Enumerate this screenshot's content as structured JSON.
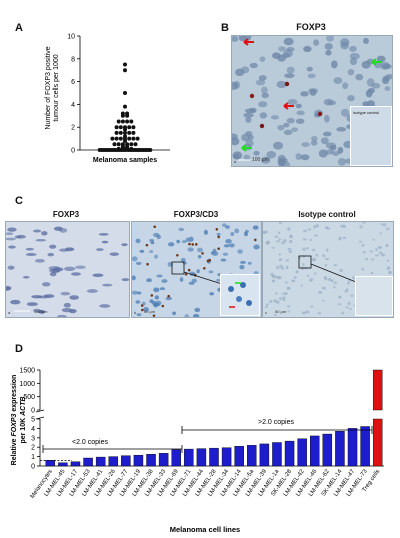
{
  "panels": {
    "A": {
      "letter": "A",
      "ylabel_line1": "Number of FOXP3 positive",
      "ylabel_line2": "tumour cells per 1000",
      "xlabel": "Melanoma samples",
      "y_ticks": [
        "0",
        "2",
        "4",
        "6",
        "8",
        "10"
      ]
    },
    "B": {
      "letter": "B",
      "title": "FOXP3",
      "inset_label": "Isotype control",
      "scale": "100 µm",
      "corner": "a"
    },
    "C": {
      "letter": "C",
      "titles": [
        "FOXP3",
        "FOXP3/CD3",
        "Isotype control"
      ],
      "scales": [
        "100 µm",
        "50 µm",
        "50 µm"
      ],
      "corners": [
        "a",
        "b",
        "c"
      ]
    },
    "D": {
      "letter": "D",
      "ylabel_line1": "Relative",
      "ylabel_italic1": "FOXP3",
      "ylabel_rest1": " expression",
      "ylabel_line2a": "per 10K ",
      "ylabel_italic2": "ACTB",
      "xlabel": "Melanoma cell lines",
      "upper_ticks": [
        "0",
        "500",
        "1000",
        "1500"
      ],
      "lower_ticks": [
        "0",
        "1",
        "2",
        "3",
        "4",
        "5"
      ],
      "bracket_low": "<2.0 copies",
      "bracket_high": ">2.0 copies"
    }
  },
  "chart_data": [
    {
      "type": "scatter",
      "panel": "A",
      "ylim": [
        0,
        10
      ],
      "x": "Melanoma samples",
      "values": [
        7.5,
        7.0,
        5.0,
        3.8,
        3.2,
        3.2,
        3.0,
        3.0,
        2.5,
        2.5,
        2.5,
        2.5,
        2.0,
        2.0,
        2.0,
        2.0,
        2.0,
        1.8,
        1.5,
        1.5,
        1.5,
        1.5,
        1.5,
        1.2,
        1.0,
        1.0,
        1.0,
        1.0,
        1.0,
        1.0,
        1.0,
        0.8,
        0.5,
        0.5,
        0.5,
        0.5,
        0.5,
        0.5,
        0.3,
        0.3,
        0.2,
        0.2,
        0.1,
        0.1,
        0.1,
        0.1,
        0.0,
        0.0,
        0.0,
        0.0,
        0.0,
        0.0,
        0.0,
        0.0,
        0.0,
        0.0,
        0.0,
        0.0,
        0.0,
        0.0,
        0.0,
        0.0,
        0.0,
        0.0,
        0.0,
        0.0,
        0.0,
        0.0,
        0.0,
        0.0
      ]
    },
    {
      "type": "bar",
      "panel": "D",
      "categories": [
        "Melanocytes",
        "LM-MEL-45",
        "LM-MEL-17",
        "LM-MEL-53",
        "LM-MEL-41",
        "LM-MEL-26",
        "LM-MEL-77",
        "LM-MEL-19",
        "LM-MEL-38",
        "LM-MEL-33",
        "LM-MEL-69",
        "LM-MEL-71",
        "LM-MEL-44",
        "LM-MEL-28",
        "LM-MEL-34",
        "LM-MEL-14",
        "LM-MEL-5a",
        "LM-MEL-39",
        "LM-MEL-1a",
        "SK-MEL-28",
        "LM-MEL-42",
        "LM-MEL-46",
        "LM-MEL-62",
        "SK-MEL-14",
        "LM-MEL-47",
        "LM-MEL-73",
        "Treg cells"
      ],
      "values": [
        0.6,
        0.35,
        0.45,
        0.85,
        0.95,
        1.0,
        1.1,
        1.15,
        1.25,
        1.35,
        1.75,
        1.8,
        1.85,
        1.9,
        1.95,
        2.1,
        2.2,
        2.35,
        2.5,
        2.65,
        2.9,
        3.2,
        3.4,
        3.7,
        4.0,
        4.2,
        1500
      ],
      "colors": [
        "#1d1dcc",
        "#1d1dcc",
        "#1d1dcc",
        "#1d1dcc",
        "#1d1dcc",
        "#1d1dcc",
        "#1d1dcc",
        "#1d1dcc",
        "#1d1dcc",
        "#1d1dcc",
        "#1d1dcc",
        "#1d1dcc",
        "#1d1dcc",
        "#1d1dcc",
        "#1d1dcc",
        "#1d1dcc",
        "#1d1dcc",
        "#1d1dcc",
        "#1d1dcc",
        "#1d1dcc",
        "#1d1dcc",
        "#1d1dcc",
        "#1d1dcc",
        "#1d1dcc",
        "#1d1dcc",
        "#1d1dcc",
        "#dd1111"
      ],
      "ylim_lower": [
        0,
        5
      ],
      "ylim_upper": [
        0,
        1500
      ],
      "reference_line": 0.6
    }
  ]
}
